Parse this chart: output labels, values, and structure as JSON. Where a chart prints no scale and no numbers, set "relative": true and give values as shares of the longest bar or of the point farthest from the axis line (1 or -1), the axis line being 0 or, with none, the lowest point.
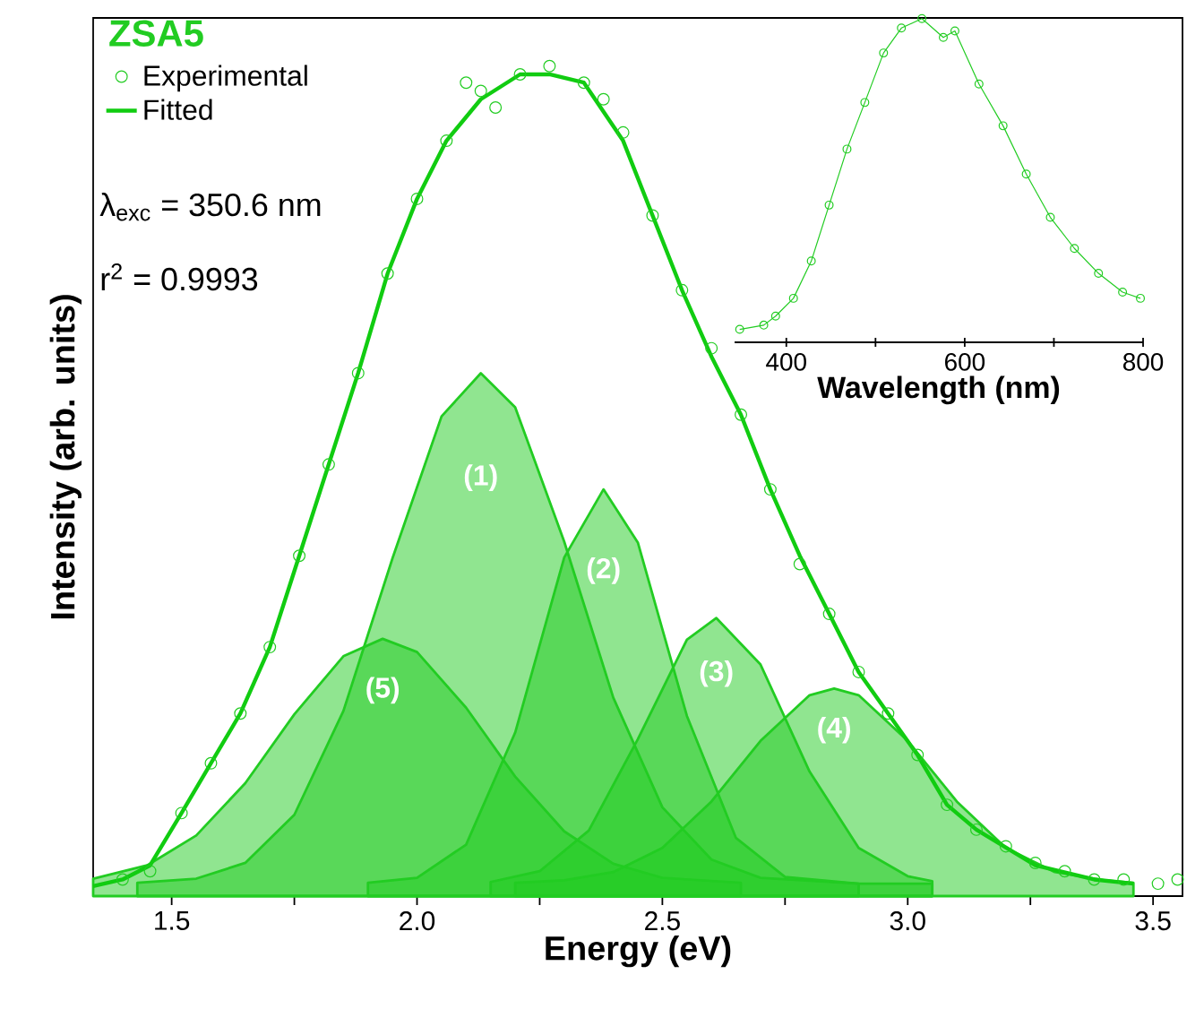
{
  "chart_data": [
    {
      "type": "line",
      "title": "ZSA5",
      "xlabel": "Energy (eV)",
      "ylabel": "Intensity (arb. units)",
      "relative": true,
      "legend": "top left",
      "annotations": [
        "λ$_{exc}$ = 350.6 nm",
        "r$^{2}$ = 0.9993"
      ],
      "xlim": [
        1.34,
        3.56
      ],
      "xticks": [
        1.5,
        {
          "value": 1.75,
          "label": null
        },
        {
          "value": 2,
          "label": "2.0"
        },
        {
          "value": 2.25,
          "label": null
        },
        2.5,
        {
          "value": 2.75,
          "label": null
        },
        {
          "value": 3,
          "label": "3.0"
        },
        {
          "value": 3.25,
          "label": null
        },
        3.5
      ],
      "series": [
        {
          "name": "(5)",
          "type": "area",
          "color": "#22cc22",
          "x": [
            1.34,
            1.45,
            1.55,
            1.65,
            1.75,
            1.85,
            1.93,
            2.0,
            2.1,
            2.2,
            2.3,
            2.4,
            2.5,
            2.66
          ],
          "values": [
            0.021,
            0.037,
            0.073,
            0.136,
            0.219,
            0.289,
            0.31,
            0.294,
            0.227,
            0.144,
            0.078,
            0.039,
            0.022,
            0.016
          ]
        },
        {
          "name": "(1)",
          "type": "area",
          "color": "#22cc22",
          "x": [
            1.43,
            1.55,
            1.65,
            1.75,
            1.85,
            1.95,
            2.05,
            2.13,
            2.2,
            2.3,
            2.4,
            2.5,
            2.6,
            2.7,
            2.9
          ],
          "values": [
            0.016,
            0.021,
            0.04,
            0.098,
            0.223,
            0.407,
            0.578,
            0.63,
            0.589,
            0.427,
            0.239,
            0.107,
            0.044,
            0.022,
            0.015
          ]
        },
        {
          "name": "(2)",
          "type": "area",
          "color": "#22cc22",
          "x": [
            1.9,
            2.0,
            2.1,
            2.2,
            2.3,
            2.38,
            2.45,
            2.55,
            2.65,
            2.75,
            2.9,
            3.05
          ],
          "values": [
            0.016,
            0.022,
            0.062,
            0.197,
            0.408,
            0.49,
            0.426,
            0.217,
            0.07,
            0.023,
            0.015,
            0.015
          ]
        },
        {
          "name": "(3)",
          "type": "area",
          "color": "#22cc22",
          "x": [
            2.15,
            2.25,
            2.35,
            2.45,
            2.55,
            2.61,
            2.7,
            2.8,
            2.9,
            3.0,
            3.05
          ],
          "values": [
            0.017,
            0.03,
            0.079,
            0.189,
            0.309,
            0.335,
            0.279,
            0.15,
            0.058,
            0.024,
            0.018
          ]
        },
        {
          "name": "(4)",
          "type": "area",
          "color": "#22cc22",
          "x": [
            2.2,
            2.3,
            2.4,
            2.5,
            2.6,
            2.7,
            2.8,
            2.85,
            2.9,
            3.0,
            3.1,
            3.2,
            3.3,
            3.4,
            3.46
          ],
          "values": [
            0.016,
            0.019,
            0.029,
            0.058,
            0.114,
            0.187,
            0.242,
            0.25,
            0.242,
            0.187,
            0.114,
            0.058,
            0.029,
            0.019,
            0.016
          ]
        },
        {
          "name": "Experimental",
          "type": "scatter",
          "marker": "circle",
          "color": "#22cc22",
          "x": [
            1.4,
            1.456,
            1.52,
            1.58,
            1.64,
            1.7,
            1.76,
            1.82,
            1.88,
            1.94,
            2.0,
            2.06,
            2.1,
            2.13,
            2.16,
            2.21,
            2.27,
            2.34,
            2.38,
            2.42,
            2.48,
            2.54,
            2.6,
            2.66,
            2.72,
            2.78,
            2.84,
            2.9,
            2.96,
            3.02,
            3.08,
            3.14,
            3.2,
            3.26,
            3.32,
            3.38,
            3.44,
            3.51,
            3.55
          ],
          "values": [
            0.02,
            0.03,
            0.1,
            0.16,
            0.22,
            0.3,
            0.41,
            0.52,
            0.63,
            0.75,
            0.84,
            0.91,
            0.98,
            0.97,
            0.95,
            0.99,
            1.0,
            0.98,
            0.96,
            0.92,
            0.82,
            0.73,
            0.66,
            0.58,
            0.49,
            0.4,
            0.34,
            0.27,
            0.22,
            0.17,
            0.11,
            0.08,
            0.06,
            0.04,
            0.03,
            0.02,
            0.02,
            0.015,
            0.02
          ]
        },
        {
          "name": "Fitted",
          "color": "#11cc11",
          "x": [
            1.34,
            1.4,
            1.456,
            1.52,
            1.58,
            1.64,
            1.7,
            1.76,
            1.82,
            1.88,
            1.94,
            2.0,
            2.06,
            2.13,
            2.21,
            2.27,
            2.34,
            2.42,
            2.48,
            2.54,
            2.6,
            2.66,
            2.72,
            2.78,
            2.84,
            2.9,
            2.96,
            3.02,
            3.08,
            3.14,
            3.26,
            3.38,
            3.46
          ],
          "values": [
            0.012,
            0.02,
            0.037,
            0.1,
            0.16,
            0.22,
            0.3,
            0.41,
            0.52,
            0.63,
            0.75,
            0.84,
            0.91,
            0.96,
            0.99,
            0.99,
            0.98,
            0.91,
            0.82,
            0.73,
            0.65,
            0.58,
            0.49,
            0.41,
            0.34,
            0.27,
            0.22,
            0.17,
            0.11,
            0.08,
            0.037,
            0.02,
            0.015
          ]
        }
      ]
    },
    {
      "type": "line",
      "xlabel": "Wavelength (nm)",
      "relative": true,
      "xlim": [
        342,
        800
      ],
      "xticks": [
        400,
        {
          "value": 500,
          "label": null
        },
        600,
        {
          "value": 700,
          "label": null
        },
        800
      ],
      "series": [
        {
          "marker": "circle",
          "color": "#22cc22",
          "x": [
            347.7,
            374.7,
            388,
            408,
            428,
            448,
            468,
            488,
            509,
            529,
            552,
            576,
            589,
            616,
            643,
            669,
            696,
            723,
            750,
            777,
            797
          ],
          "values": [
            0.04,
            0.053,
            0.081,
            0.136,
            0.251,
            0.424,
            0.597,
            0.741,
            0.894,
            0.971,
            1.0,
            0.942,
            0.962,
            0.798,
            0.669,
            0.52,
            0.386,
            0.29,
            0.213,
            0.155,
            0.136
          ]
        }
      ]
    }
  ]
}
